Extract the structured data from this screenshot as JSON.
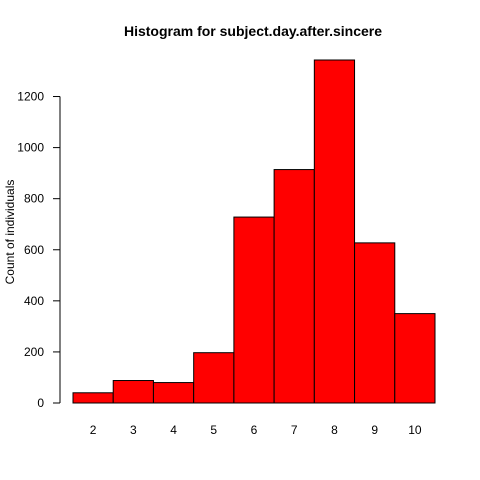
{
  "chart_data": {
    "type": "bar",
    "title": "Histogram for subject.day.after.sincere",
    "xlabel": "",
    "ylabel": "Count of individuals",
    "categories": [
      "2",
      "3",
      "4",
      "5",
      "6",
      "7",
      "8",
      "9",
      "10"
    ],
    "values": [
      40,
      88,
      80,
      197,
      728,
      914,
      1343,
      627,
      350
    ],
    "ylim": [
      0,
      1343
    ],
    "yticks": [
      0,
      200,
      400,
      600,
      800,
      1000,
      1200
    ],
    "bar_color": "#ff0000",
    "grid": false
  }
}
